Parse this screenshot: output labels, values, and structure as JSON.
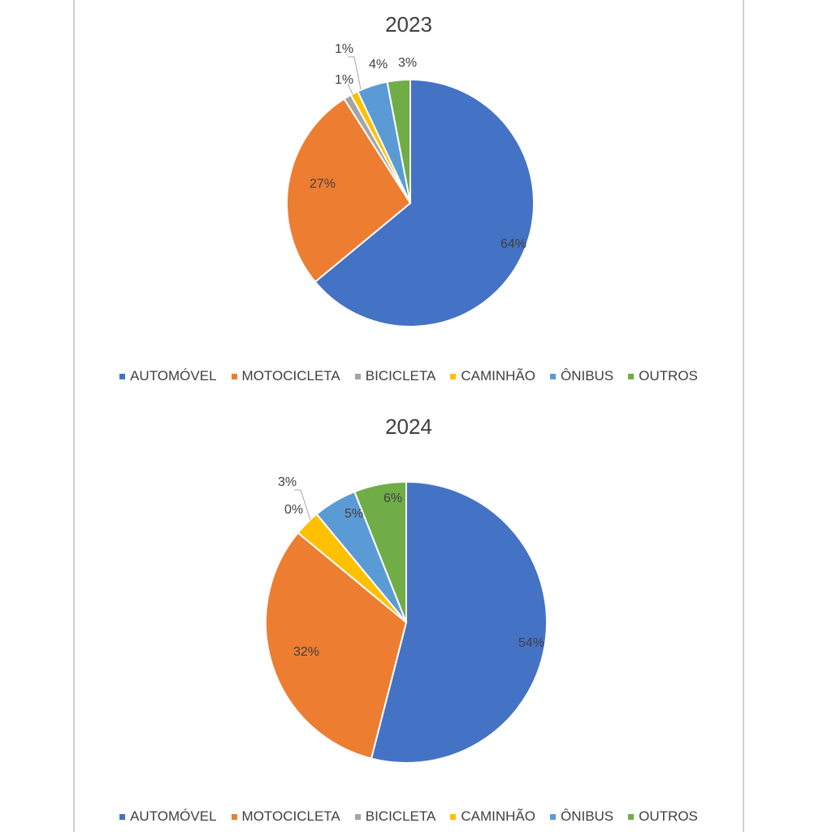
{
  "chart_data": [
    {
      "type": "pie",
      "title": "2023",
      "categories": [
        "AUTOMÓVEL",
        "MOTOCICLETA",
        "BICICLETA",
        "CAMINHÃO",
        "ÔNIBUS",
        "OUTROS"
      ],
      "values": [
        64,
        27,
        1,
        1,
        4,
        3
      ],
      "labels": [
        "64%",
        "27%",
        "1%",
        "1%",
        "4%",
        "3%"
      ],
      "colors": [
        "#4472C4",
        "#ED7D31",
        "#A5A5A5",
        "#FFC000",
        "#5B9BD5",
        "#70AD47"
      ],
      "legend": "bottom"
    },
    {
      "type": "pie",
      "title": "2024",
      "categories": [
        "AUTOMÓVEL",
        "MOTOCICLETA",
        "BICICLETA",
        "CAMINHÃO",
        "ÔNIBUS",
        "OUTROS"
      ],
      "values": [
        54,
        32,
        0,
        3,
        5,
        6
      ],
      "labels": [
        "54%",
        "32%",
        "0%",
        "3%",
        "5%",
        "6%"
      ],
      "colors": [
        "#4472C4",
        "#ED7D31",
        "#A5A5A5",
        "#FFC000",
        "#5B9BD5",
        "#70AD47"
      ],
      "legend": "bottom"
    }
  ]
}
